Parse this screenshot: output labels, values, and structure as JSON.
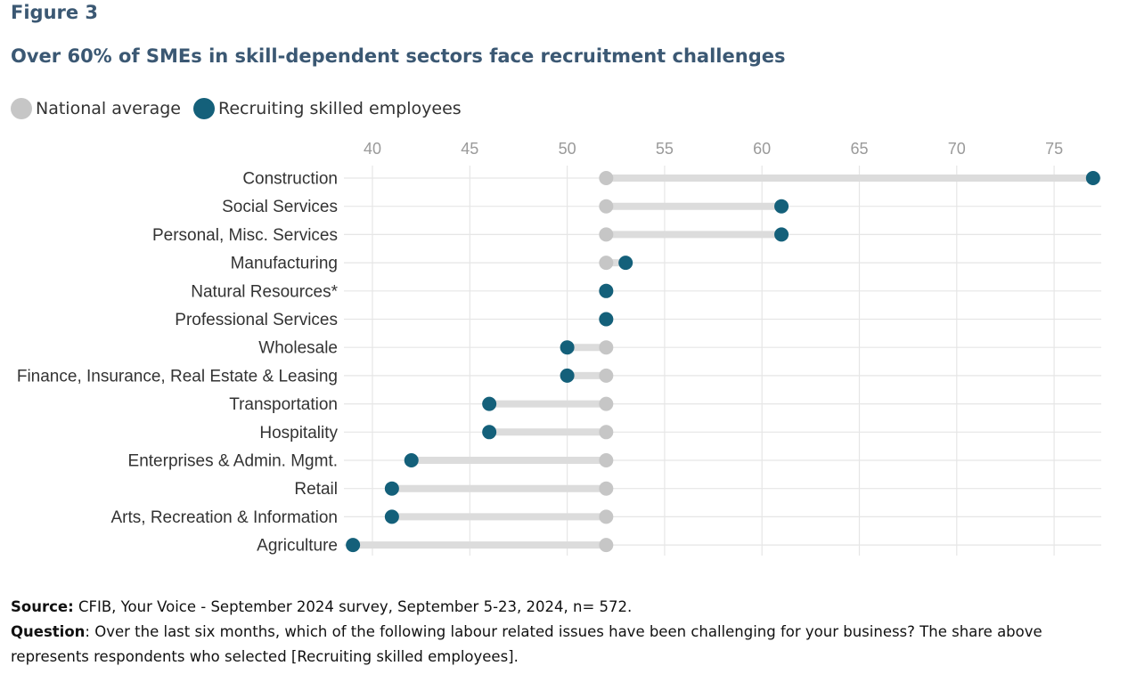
{
  "figure_label": "Figure 3",
  "footer": {
    "source_label": "Source:",
    "source_text": "CFIB, Your Voice - September 2024 survey, September 5-23, 2024, n= 572.",
    "question_label": "Question",
    "question_text": ": Over the last six months, which of the following labour related issues have been challenging for your business? The share above represents respondents who selected [Recruiting skilled employees]."
  },
  "colors": {
    "national": "#c6c6c6",
    "recruiting": "#14607a",
    "connector": "#dcdcdc",
    "grid": "#e6e6e6",
    "title": "#3b5873"
  },
  "chart_data": {
    "type": "dot-plot",
    "title": "Over 60% of SMEs in skill-dependent sectors face recruitment challenges",
    "xlim": [
      38.6,
      77
    ],
    "x_ticks": [
      40,
      45,
      50,
      55,
      60,
      65,
      70,
      75
    ],
    "grid": true,
    "legend_position": "top-left",
    "series": [
      {
        "name": "National average",
        "color": "#c6c6c6"
      },
      {
        "name": "Recruiting skilled employees",
        "color": "#14607a"
      }
    ],
    "categories": [
      "Construction",
      "Social Services",
      "Personal, Misc. Services",
      "Manufacturing",
      "Natural Resources*",
      "Professional Services",
      "Wholesale",
      "Finance, Insurance, Real Estate & Leasing",
      "Transportation",
      "Hospitality",
      "Enterprises & Admin. Mgmt.",
      "Retail",
      "Arts, Recreation & Information",
      "Agriculture"
    ],
    "national_average": [
      52,
      52,
      52,
      52,
      52,
      52,
      52,
      52,
      52,
      52,
      52,
      52,
      52,
      52
    ],
    "recruiting_skilled": [
      77,
      61,
      61,
      53,
      52,
      52,
      50,
      50,
      46,
      46,
      42,
      41,
      41,
      39
    ]
  }
}
